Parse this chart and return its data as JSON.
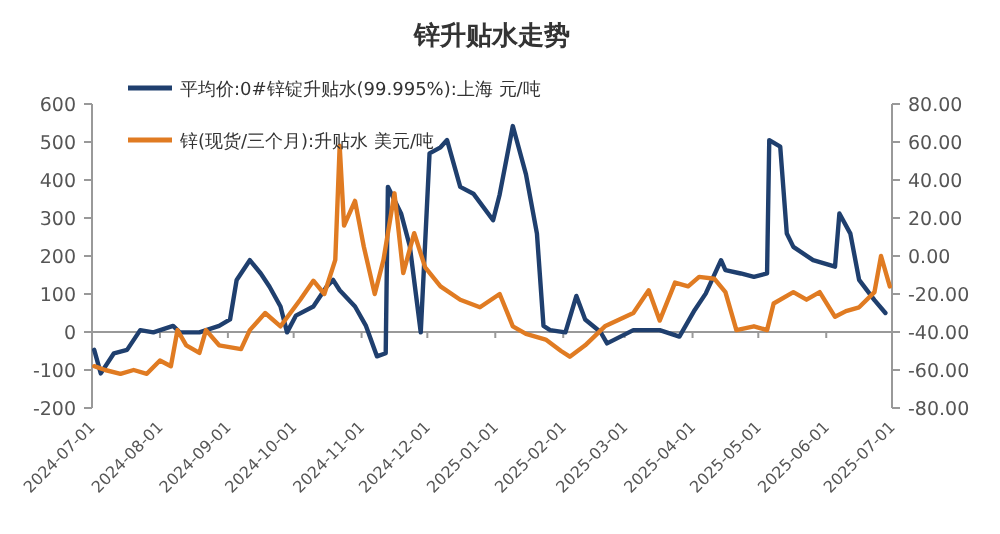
{
  "chart_data": {
    "type": "line",
    "title": "锌升贴水走势",
    "legend": "top left",
    "line_style": "solid",
    "marker": "none",
    "xlim": [
      "2024-07-01",
      "2025-07-01"
    ],
    "xticks": [
      "2024-07-01",
      "2024-08-01",
      "2024-09-01",
      "2024-10-01",
      "2024-11-01",
      "2024-12-01",
      "2025-01-01",
      "2025-02-01",
      "2025-03-01",
      "2025-04-01",
      "2025-05-01",
      "2025-06-01",
      "2025-07-01"
    ],
    "ylim": [
      -200,
      600
    ],
    "yticks": [
      -200,
      -100,
      0,
      100,
      200,
      300,
      400,
      500,
      600
    ],
    "y2lim": [
      -80,
      80
    ],
    "y2ticks": [
      {
        "value": -80,
        "label": "-80.00"
      },
      {
        "value": -60,
        "label": "-60.00"
      },
      {
        "value": -40,
        "label": "-40.00"
      },
      {
        "value": -20,
        "label": "-20.00"
      },
      {
        "value": 0,
        "label": "0.00"
      },
      {
        "value": 20,
        "label": "20.00"
      },
      {
        "value": 40,
        "label": "40.00"
      },
      {
        "value": 60,
        "label": "60.00"
      },
      {
        "value": 80,
        "label": "80.00"
      }
    ],
    "series": [
      {
        "name": "平均价:0#锌锭升贴水(99.995%):上海 元/吨",
        "color": "#1f3f6e",
        "axis": "y",
        "x": [
          "2024-07-02",
          "2024-07-05",
          "2024-07-11",
          "2024-07-17",
          "2024-07-23",
          "2024-07-29",
          "2024-08-07",
          "2024-08-10",
          "2024-08-19",
          "2024-08-28",
          "2024-09-02",
          "2024-09-05",
          "2024-09-11",
          "2024-09-16",
          "2024-09-20",
          "2024-09-25",
          "2024-09-28",
          "2024-10-02",
          "2024-10-10",
          "2024-10-16",
          "2024-10-19",
          "2024-10-22",
          "2024-10-29",
          "2024-11-03",
          "2024-11-08",
          "2024-11-12",
          "2024-11-13",
          "2024-11-19",
          "2024-11-23",
          "2024-11-28",
          "2024-12-02",
          "2024-12-07",
          "2024-12-10",
          "2024-12-16",
          "2024-12-22",
          "2024-12-31",
          "2025-01-03",
          "2025-01-09",
          "2025-01-15",
          "2025-01-20",
          "2025-01-23",
          "2025-01-26",
          "2025-02-02",
          "2025-02-07",
          "2025-02-11",
          "2025-02-18",
          "2025-02-21",
          "2025-03-05",
          "2025-03-17",
          "2025-03-26",
          "2025-04-02",
          "2025-04-07",
          "2025-04-14",
          "2025-04-16",
          "2025-04-23",
          "2025-04-29",
          "2025-05-05",
          "2025-05-06",
          "2025-05-11",
          "2025-05-14",
          "2025-05-17",
          "2025-05-26",
          "2025-06-05",
          "2025-06-07",
          "2025-06-12",
          "2025-06-16",
          "2025-06-23",
          "2025-06-28"
        ],
        "values": [
          -47,
          -109,
          -56,
          -47,
          5,
          -1,
          16,
          -1,
          -1,
          16,
          33,
          137,
          189,
          154,
          119,
          67,
          -1,
          43,
          67,
          119,
          137,
          110,
          67,
          16,
          -64,
          -56,
          382,
          312,
          226,
          -1,
          470,
          486,
          505,
          382,
          364,
          294,
          362,
          542,
          415,
          259,
          16,
          5,
          -1,
          95,
          33,
          0,
          -30,
          5,
          5,
          -12,
          58,
          101,
          189,
          163,
          154,
          145,
          154,
          505,
          488,
          259,
          224,
          189,
          172,
          312,
          259,
          137,
          84,
          50
        ]
      },
      {
        "name": "锌(现货/三个月):升贴水 美元/吨",
        "color": "#e07b22",
        "axis": "y2",
        "x": [
          "2024-07-02",
          "2024-07-07",
          "2024-07-14",
          "2024-07-20",
          "2024-07-26",
          "2024-08-01",
          "2024-08-06",
          "2024-08-09",
          "2024-08-13",
          "2024-08-19",
          "2024-08-22",
          "2024-08-28",
          "2024-09-07",
          "2024-09-11",
          "2024-09-18",
          "2024-09-25",
          "2024-10-04",
          "2024-10-10",
          "2024-10-15",
          "2024-10-20",
          "2024-10-22",
          "2024-10-24",
          "2024-10-29",
          "2024-11-02",
          "2024-11-07",
          "2024-11-11",
          "2024-11-16",
          "2024-11-20",
          "2024-11-25",
          "2024-11-30",
          "2024-12-07",
          "2024-12-16",
          "2024-12-25",
          "2025-01-03",
          "2025-01-09",
          "2025-01-15",
          "2025-01-24",
          "2025-01-31",
          "2025-02-04",
          "2025-02-11",
          "2025-02-20",
          "2025-03-05",
          "2025-03-12",
          "2025-03-17",
          "2025-03-24",
          "2025-03-30",
          "2025-04-04",
          "2025-04-11",
          "2025-04-16",
          "2025-04-21",
          "2025-04-29",
          "2025-05-05",
          "2025-05-08",
          "2025-05-17",
          "2025-05-23",
          "2025-05-29",
          "2025-06-05",
          "2025-06-10",
          "2025-06-16",
          "2025-06-23",
          "2025-06-26",
          "2025-06-30"
        ],
        "values": [
          -58,
          -60,
          -62,
          -60,
          -62,
          -55,
          -58,
          -39,
          -47,
          -51,
          -39,
          -47,
          -49,
          -39,
          -30,
          -37,
          -23,
          -13,
          -20,
          -2,
          58,
          16,
          29,
          5,
          -20,
          -2,
          33,
          -9,
          12,
          -6,
          -16,
          -23,
          -27,
          -20,
          -37,
          -41,
          -44,
          -50,
          -53,
          -47,
          -37,
          -30,
          -18,
          -34,
          -14,
          -16,
          -11,
          -12,
          -19,
          -39,
          -37,
          -39,
          -25,
          -19,
          -23,
          -19,
          -32,
          -29,
          -27,
          -19,
          0,
          -16
        ]
      }
    ]
  }
}
